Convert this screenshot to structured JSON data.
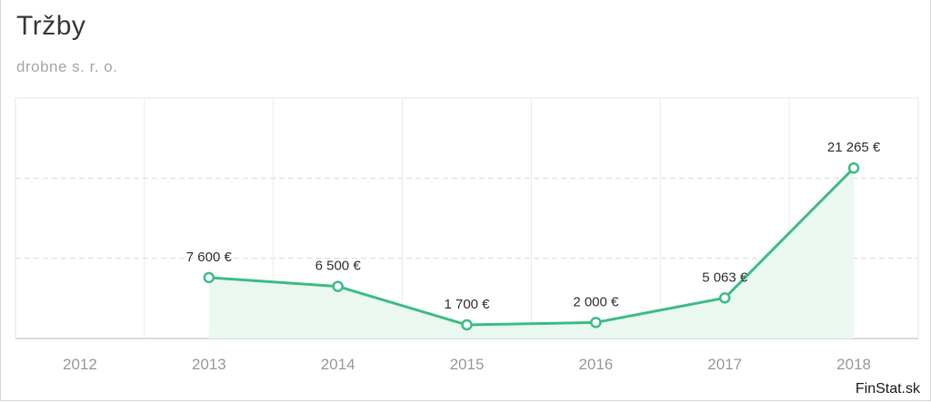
{
  "title": "Tržby",
  "subtitle": "drobne s. r. o.",
  "source": "FinStat.sk",
  "colors": {
    "line": "#3dbd86",
    "area": "#eaf8f1",
    "grid": "#dcdcdc"
  },
  "chart_data": {
    "type": "area",
    "title": "Tržby",
    "subtitle": "drobne s. r. o.",
    "categories": [
      "2012",
      "2013",
      "2014",
      "2015",
      "2016",
      "2017",
      "2018"
    ],
    "series": [
      {
        "values": [
          null,
          7600,
          6500,
          1700,
          2000,
          5063,
          21265
        ]
      }
    ],
    "value_labels": [
      "",
      "7 600 €",
      "6 500 €",
      "1 700 €",
      "2 000 €",
      "5 063 €",
      "21 265 €"
    ],
    "ylim": [
      0,
      30000
    ],
    "grid": true,
    "legend": "none"
  }
}
